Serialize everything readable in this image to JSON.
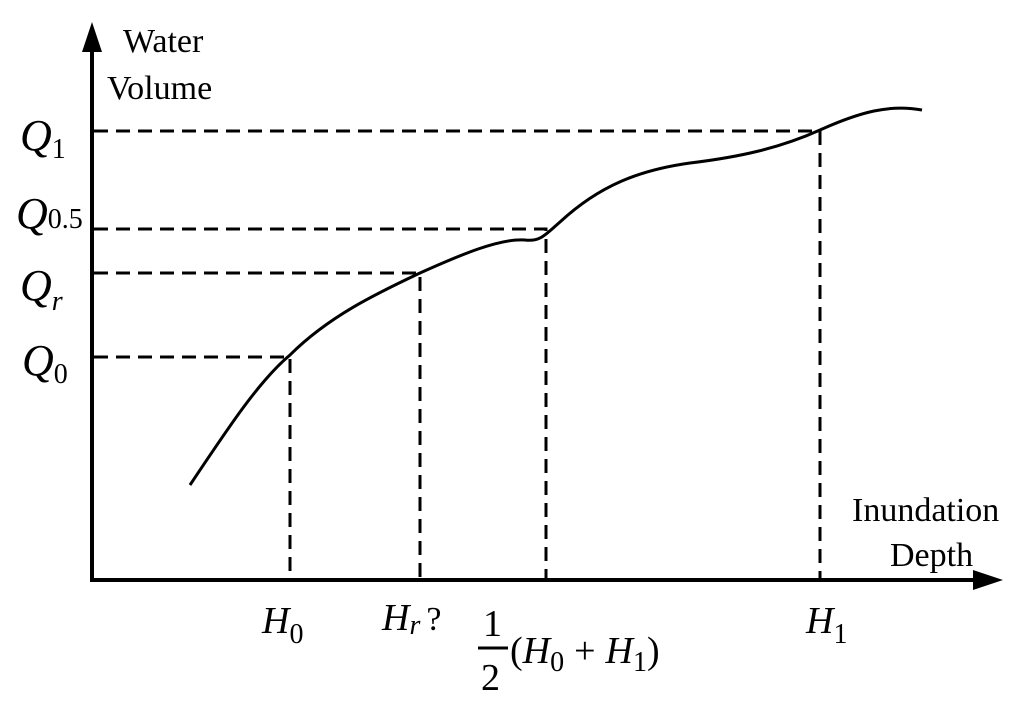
{
  "axes": {
    "y_label": [
      "Water",
      "Volume"
    ],
    "x_label": [
      "Inundation",
      "Depth"
    ]
  },
  "y_markers": [
    {
      "symbol": "Q",
      "subscript": "1"
    },
    {
      "symbol": "Q",
      "subscript": "0.5"
    },
    {
      "symbol": "Q",
      "subscript": "r"
    },
    {
      "symbol": "Q",
      "subscript": "0"
    }
  ],
  "x_markers": [
    {
      "symbol": "H",
      "subscript": "0"
    },
    {
      "symbol": "H",
      "subscript": "r",
      "suffix": "?"
    },
    {
      "numerator": "1",
      "denominator": "2",
      "parts": [
        "(",
        "H",
        "0",
        "+",
        "H",
        "1",
        ")"
      ]
    },
    {
      "symbol": "H",
      "subscript": "1"
    }
  ]
}
